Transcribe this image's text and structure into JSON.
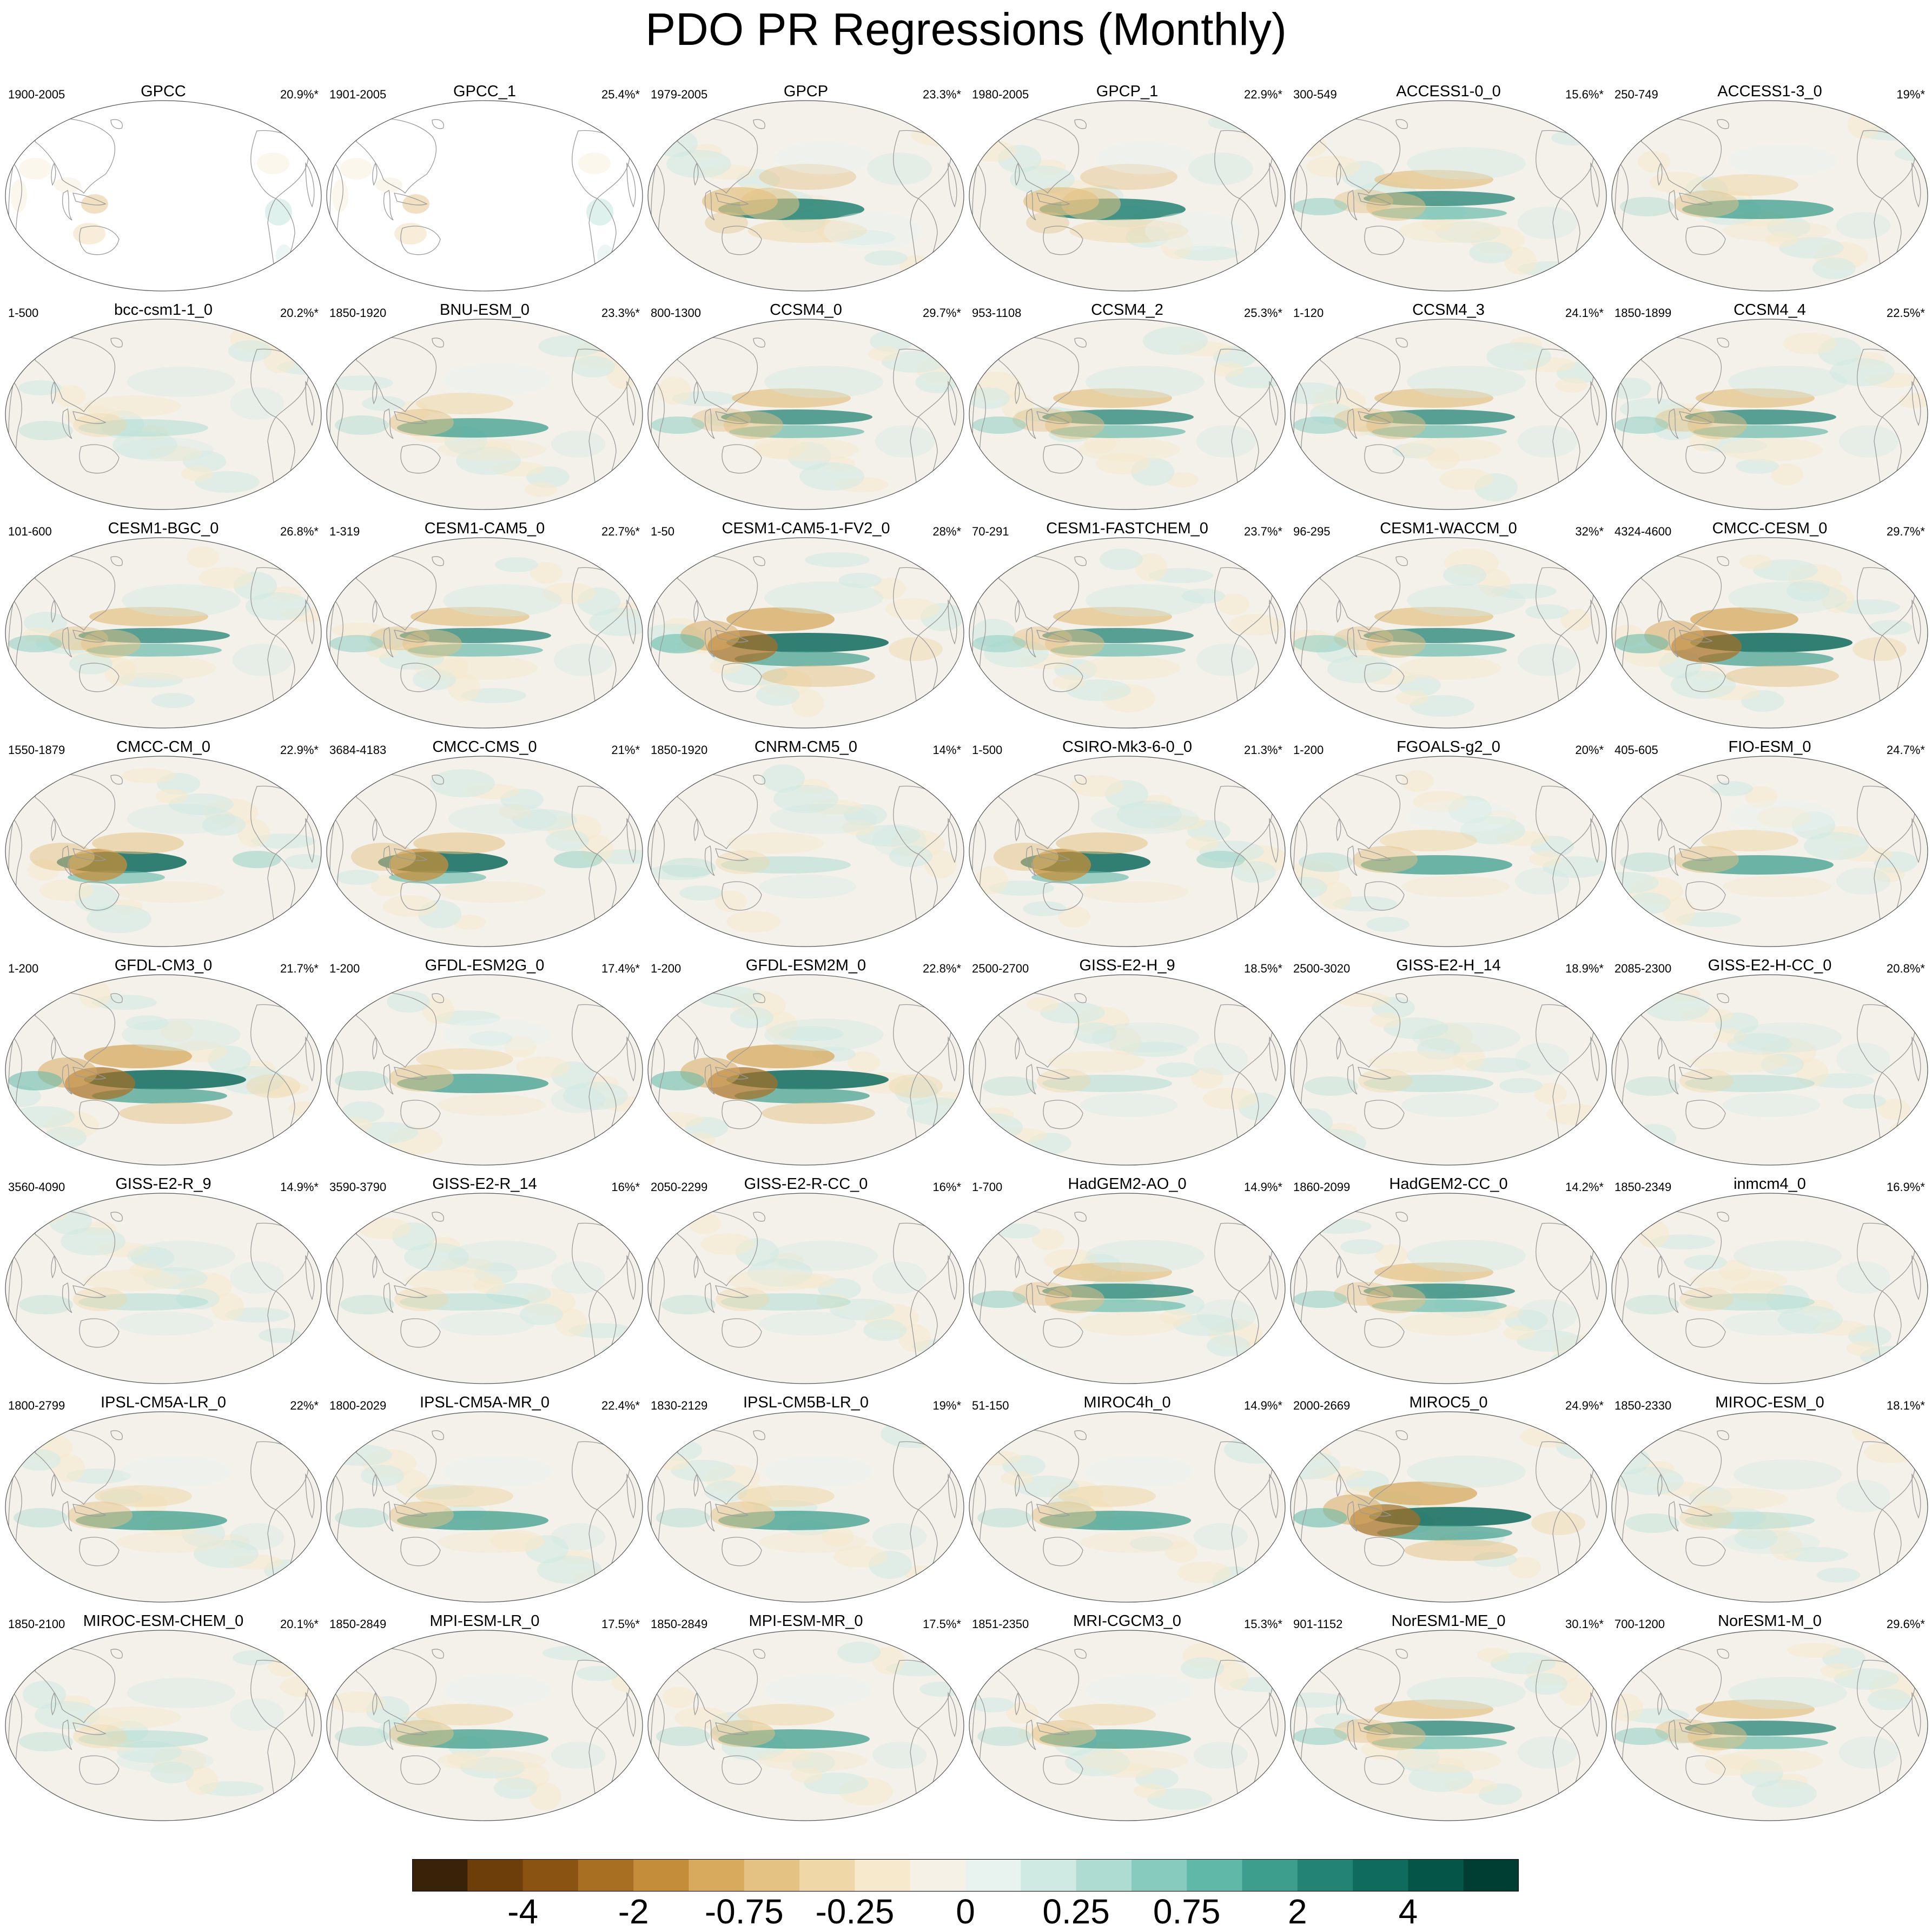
{
  "chart_data": {
    "type": "heatmap",
    "title": "PDO PR Regressions (Monthly)",
    "map_projection": "Robinson, Pacific-centred",
    "panels": [
      {
        "name": "GPCC",
        "years": "1900-2005",
        "variance": "20.9%*",
        "pattern": "obs_land"
      },
      {
        "name": "GPCC_1",
        "years": "1901-2005",
        "variance": "25.4%*",
        "pattern": "obs_land"
      },
      {
        "name": "GPCP",
        "years": "1979-2005",
        "variance": "23.3%*",
        "pattern": "obs"
      },
      {
        "name": "GPCP_1",
        "years": "1980-2005",
        "variance": "22.9%*",
        "pattern": "obs"
      },
      {
        "name": "ACCESS1-0_0",
        "years": "300-549",
        "variance": "15.6%*",
        "pattern": "double"
      },
      {
        "name": "ACCESS1-3_0",
        "years": "250-749",
        "variance": "19%*",
        "pattern": "std"
      },
      {
        "name": "bcc-csm1-1_0",
        "years": "1-500",
        "variance": "20.2%*",
        "pattern": "weak"
      },
      {
        "name": "BNU-ESM_0",
        "years": "1850-1920",
        "variance": "23.3%*",
        "pattern": "std"
      },
      {
        "name": "CCSM4_0",
        "years": "800-1300",
        "variance": "29.7%*",
        "pattern": "double"
      },
      {
        "name": "CCSM4_2",
        "years": "953-1108",
        "variance": "25.3%*",
        "pattern": "double"
      },
      {
        "name": "CCSM4_3",
        "years": "1-120",
        "variance": "24.1%*",
        "pattern": "double"
      },
      {
        "name": "CCSM4_4",
        "years": "1850-1899",
        "variance": "22.5%*",
        "pattern": "double"
      },
      {
        "name": "CESM1-BGC_0",
        "years": "101-600",
        "variance": "26.8%*",
        "pattern": "double"
      },
      {
        "name": "CESM1-CAM5_0",
        "years": "1-319",
        "variance": "22.7%*",
        "pattern": "double"
      },
      {
        "name": "CESM1-CAM5-1-FV2_0",
        "years": "1-50",
        "variance": "28%*",
        "pattern": "strong"
      },
      {
        "name": "CESM1-FASTCHEM_0",
        "years": "70-291",
        "variance": "23.7%*",
        "pattern": "double"
      },
      {
        "name": "CESM1-WACCM_0",
        "years": "96-295",
        "variance": "32%*",
        "pattern": "double"
      },
      {
        "name": "CMCC-CESM_0",
        "years": "4324-4600",
        "variance": "29.7%*",
        "pattern": "strong"
      },
      {
        "name": "CMCC-CM_0",
        "years": "1550-1879",
        "variance": "22.9%*",
        "pattern": "west"
      },
      {
        "name": "CMCC-CMS_0",
        "years": "3684-4183",
        "variance": "21%*",
        "pattern": "west"
      },
      {
        "name": "CNRM-CM5_0",
        "years": "1850-1920",
        "variance": "14%*",
        "pattern": "weak"
      },
      {
        "name": "CSIRO-Mk3-6-0_0",
        "years": "1-500",
        "variance": "21.3%*",
        "pattern": "west"
      },
      {
        "name": "FGOALS-g2_0",
        "years": "1-200",
        "variance": "20%*",
        "pattern": "std"
      },
      {
        "name": "FIO-ESM_0",
        "years": "405-605",
        "variance": "24.7%*",
        "pattern": "std"
      },
      {
        "name": "GFDL-CM3_0",
        "years": "1-200",
        "variance": "21.7%*",
        "pattern": "strong"
      },
      {
        "name": "GFDL-ESM2G_0",
        "years": "1-200",
        "variance": "17.4%*",
        "pattern": "std"
      },
      {
        "name": "GFDL-ESM2M_0",
        "years": "1-200",
        "variance": "22.8%*",
        "pattern": "strong"
      },
      {
        "name": "GISS-E2-H_9",
        "years": "2500-2700",
        "variance": "18.5%*",
        "pattern": "weak"
      },
      {
        "name": "GISS-E2-H_14",
        "years": "2500-3020",
        "variance": "18.9%*",
        "pattern": "weak"
      },
      {
        "name": "GISS-E2-H-CC_0",
        "years": "2085-2300",
        "variance": "20.8%*",
        "pattern": "weak"
      },
      {
        "name": "GISS-E2-R_9",
        "years": "3560-4090",
        "variance": "14.9%*",
        "pattern": "weak"
      },
      {
        "name": "GISS-E2-R_14",
        "years": "3590-3790",
        "variance": "16%*",
        "pattern": "weak"
      },
      {
        "name": "GISS-E2-R-CC_0",
        "years": "2050-2299",
        "variance": "16%*",
        "pattern": "weak"
      },
      {
        "name": "HadGEM2-AO_0",
        "years": "1-700",
        "variance": "14.9%*",
        "pattern": "double"
      },
      {
        "name": "HadGEM2-CC_0",
        "years": "1860-2099",
        "variance": "14.2%*",
        "pattern": "double"
      },
      {
        "name": "inmcm4_0",
        "years": "1850-2349",
        "variance": "16.9%*",
        "pattern": "weak"
      },
      {
        "name": "IPSL-CM5A-LR_0",
        "years": "1800-2799",
        "variance": "22%*",
        "pattern": "std"
      },
      {
        "name": "IPSL-CM5A-MR_0",
        "years": "1800-2029",
        "variance": "22.4%*",
        "pattern": "std"
      },
      {
        "name": "IPSL-CM5B-LR_0",
        "years": "1830-2129",
        "variance": "19%*",
        "pattern": "std"
      },
      {
        "name": "MIROC4h_0",
        "years": "51-150",
        "variance": "14.9%*",
        "pattern": "std"
      },
      {
        "name": "MIROC5_0",
        "years": "2000-2669",
        "variance": "24.9%*",
        "pattern": "strong"
      },
      {
        "name": "MIROC-ESM_0",
        "years": "1850-2330",
        "variance": "18.1%*",
        "pattern": "weak"
      },
      {
        "name": "MIROC-ESM-CHEM_0",
        "years": "1850-2100",
        "variance": "20.1%*",
        "pattern": "weak"
      },
      {
        "name": "MPI-ESM-LR_0",
        "years": "1850-2849",
        "variance": "17.5%*",
        "pattern": "std"
      },
      {
        "name": "MPI-ESM-MR_0",
        "years": "1850-2849",
        "variance": "17.5%*",
        "pattern": "std"
      },
      {
        "name": "MRI-CGCM3_0",
        "years": "1851-2350",
        "variance": "15.3%*",
        "pattern": "std"
      },
      {
        "name": "NorESM1-ME_0",
        "years": "901-1152",
        "variance": "30.1%*",
        "pattern": "double"
      },
      {
        "name": "NorESM1-M_0",
        "years": "700-1200",
        "variance": "29.6%*",
        "pattern": "double"
      }
    ],
    "colorbar": {
      "labels": [
        "-4",
        "-2",
        "-0.75",
        "-0.25",
        "0",
        "0.25",
        "0.75",
        "2",
        "4"
      ],
      "label_positions": [
        2,
        4,
        6,
        8,
        10,
        12,
        14,
        16,
        18
      ],
      "colors": [
        "#3a2209",
        "#6e3e0a",
        "#8a5312",
        "#a86e22",
        "#c48d3a",
        "#d7aa5e",
        "#e4c284",
        "#efd7a8",
        "#f6e9cc",
        "#f5f1e7",
        "#e8f3f0",
        "#cfe9e3",
        "#aedcd2",
        "#86cbbd",
        "#5fb8a8",
        "#3e9e8d",
        "#238374",
        "#0e6b5d",
        "#055649",
        "#003d33"
      ]
    }
  }
}
